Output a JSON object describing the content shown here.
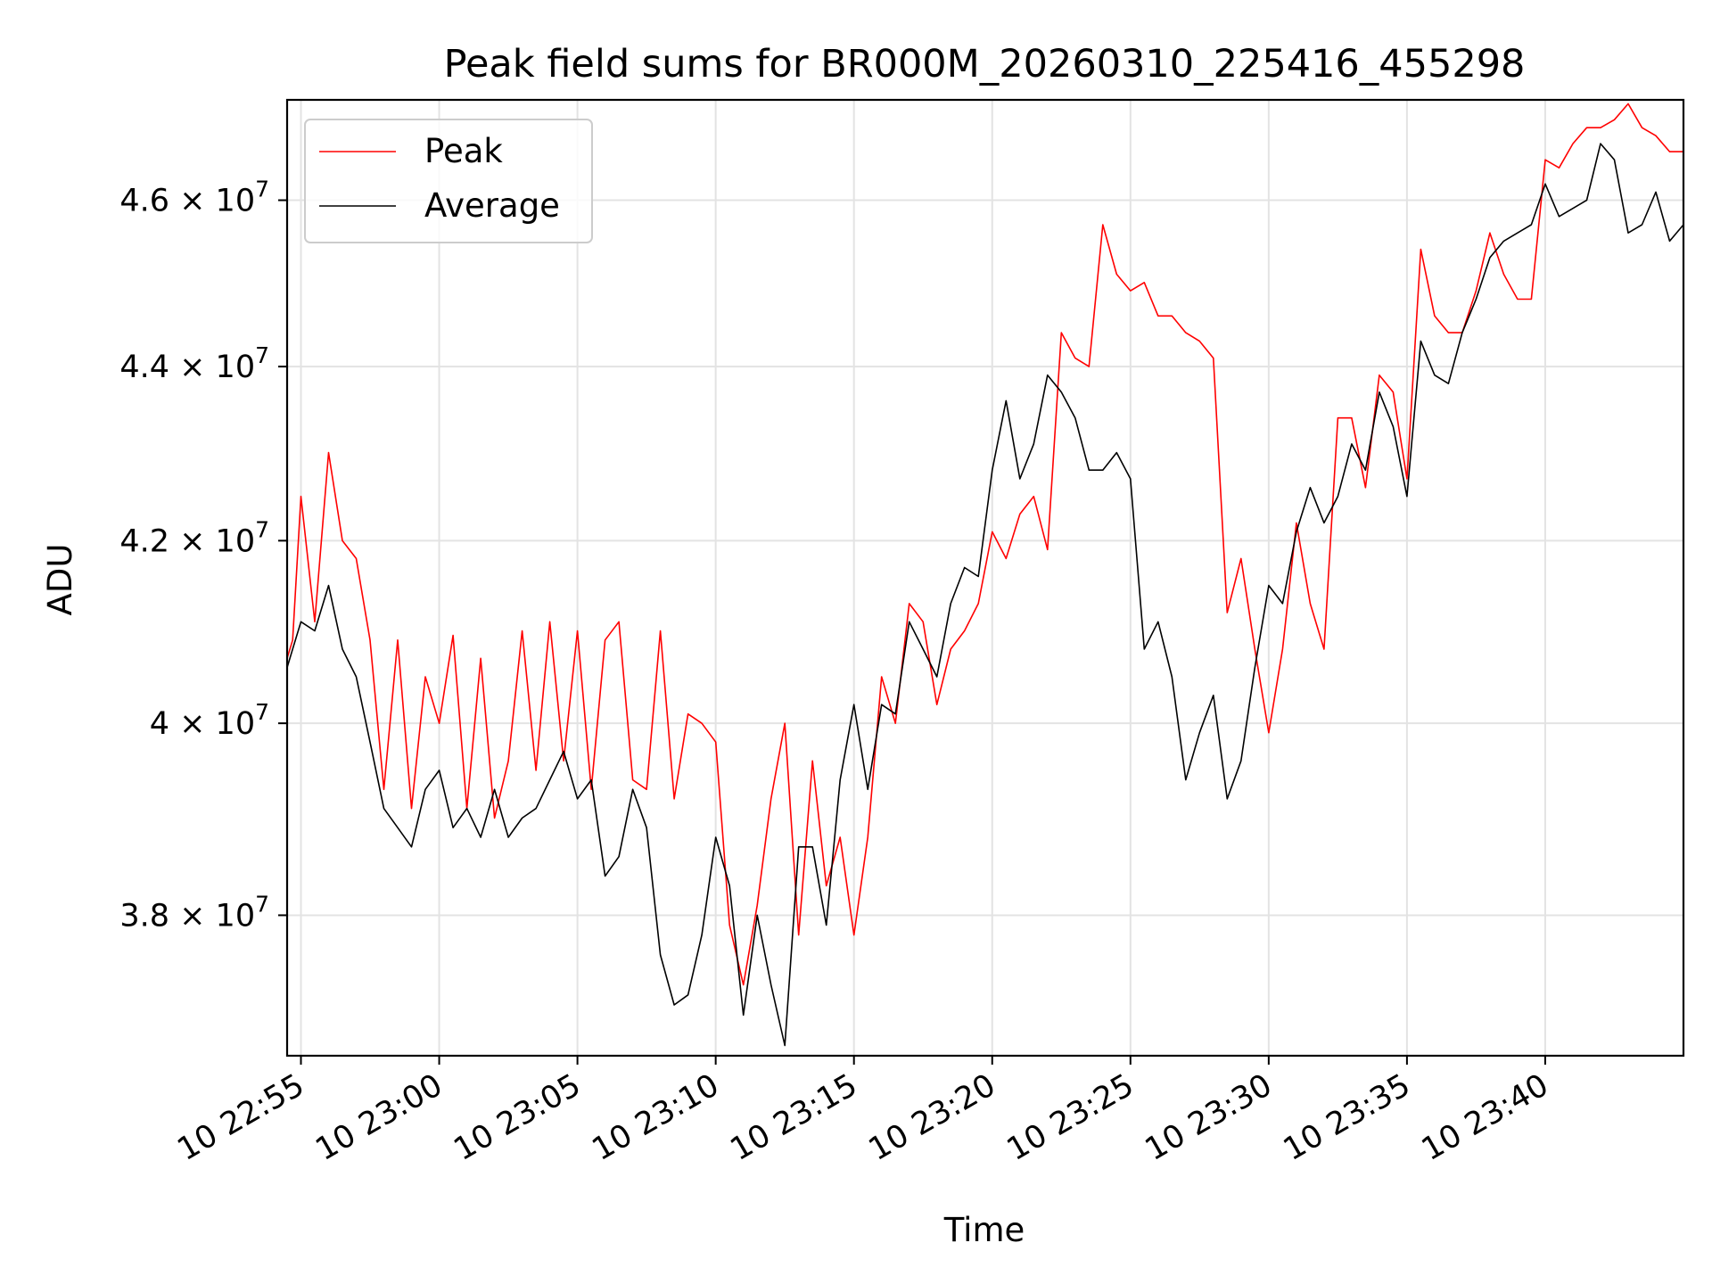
{
  "chart_data": {
    "type": "line",
    "title": "Peak field sums for BR000M_20260310_225416_455298",
    "xlabel": "Time",
    "ylabel": "ADU",
    "yscale": "log",
    "xlim_minutes": [
      -0.5,
      50.0
    ],
    "ylim": [
      36600000,
      47250000
    ],
    "grid": true,
    "legend_position": "top-left",
    "x_ticks": [
      {
        "minute": 0,
        "label": "10 22:55"
      },
      {
        "minute": 5,
        "label": "10 23:00"
      },
      {
        "minute": 10,
        "label": "10 23:05"
      },
      {
        "minute": 15,
        "label": "10 23:10"
      },
      {
        "minute": 20,
        "label": "10 23:15"
      },
      {
        "minute": 25,
        "label": "10 23:20"
      },
      {
        "minute": 30,
        "label": "10 23:25"
      },
      {
        "minute": 35,
        "label": "10 23:30"
      },
      {
        "minute": 40,
        "label": "10 23:35"
      },
      {
        "minute": 45,
        "label": "10 23:40"
      }
    ],
    "y_ticks": [
      {
        "value": 38000000,
        "mantissa": "3.8",
        "exp": "7"
      },
      {
        "value": 40000000,
        "mantissa": "4",
        "exp": "7"
      },
      {
        "value": 42000000,
        "mantissa": "4.2",
        "exp": "7"
      },
      {
        "value": 44000000,
        "mantissa": "4.4",
        "exp": "7"
      },
      {
        "value": 46000000,
        "mantissa": "4.6",
        "exp": "7"
      }
    ],
    "series": [
      {
        "name": "Peak",
        "color": "#ff0000",
        "minutes": [
          -0.5,
          -0.3,
          0,
          0.5,
          1,
          1.5,
          2,
          2.5,
          3,
          3.5,
          4,
          4.5,
          5,
          5.5,
          6,
          6.5,
          7,
          7.5,
          8,
          8.5,
          9,
          9.5,
          10,
          10.5,
          11,
          11.5,
          12,
          12.5,
          13,
          13.5,
          14,
          14.5,
          15,
          15.5,
          16,
          16.5,
          17,
          17.5,
          18,
          18.5,
          19,
          19.5,
          20,
          20.5,
          21,
          21.5,
          22,
          22.5,
          23,
          23.5,
          24,
          24.5,
          25,
          25.5,
          26,
          26.5,
          27,
          27.5,
          28,
          28.5,
          29,
          29.5,
          30,
          30.5,
          31,
          31.5,
          32,
          32.5,
          33,
          33.5,
          34,
          34.5,
          35,
          35.5,
          36,
          36.5,
          37,
          37.5,
          38,
          38.5,
          39,
          39.5,
          40,
          40.5,
          41,
          41.5,
          42,
          42.5,
          43,
          43.5,
          44,
          44.5,
          45,
          45.5,
          46,
          46.5,
          47,
          47.5,
          48,
          48.5,
          49,
          49.5,
          50
        ],
        "values": [
          40700000,
          40900000,
          42500000,
          41100000,
          43000000,
          42000000,
          41800000,
          40900000,
          39300000,
          40900000,
          39100000,
          40500000,
          40000000,
          40950000,
          39100000,
          40700000,
          39000000,
          39600000,
          41000000,
          39500000,
          41100000,
          39600000,
          41000000,
          39300000,
          40900000,
          41100000,
          39400000,
          39300000,
          41000000,
          39200000,
          40100000,
          40000000,
          39800000,
          37900000,
          37300000,
          38100000,
          39200000,
          40000000,
          37800000,
          39600000,
          38300000,
          38800000,
          37800000,
          38800000,
          40500000,
          40000000,
          41300000,
          41100000,
          40200000,
          40800000,
          41000000,
          41300000,
          42100000,
          41800000,
          42300000,
          42500000,
          41900000,
          44400000,
          44100000,
          44000000,
          45700000,
          45100000,
          44900000,
          45000000,
          44600000,
          44600000,
          44400000,
          44300000,
          44100000,
          41200000,
          41800000,
          40800000,
          39900000,
          40800000,
          42200000,
          41300000,
          40800000,
          43400000,
          43400000,
          42600000,
          43900000,
          43700000,
          42700000,
          45400000,
          44600000,
          44400000,
          44400000,
          44900000,
          45600000,
          45100000,
          44800000,
          44800000,
          46500000,
          46400000,
          46700000,
          46900000,
          46900000,
          47000000,
          47200000,
          46900000,
          46800000,
          46600000,
          46600000
        ]
      },
      {
        "name": "Average",
        "color": "#000000",
        "minutes": [
          -0.5,
          -0.3,
          0,
          0.5,
          1,
          1.5,
          2,
          2.5,
          3,
          3.5,
          4,
          4.5,
          5,
          5.5,
          6,
          6.5,
          7,
          7.5,
          8,
          8.5,
          9,
          9.5,
          10,
          10.5,
          11,
          11.5,
          12,
          12.5,
          13,
          13.5,
          14,
          14.5,
          15,
          15.5,
          16,
          16.5,
          17,
          17.5,
          18,
          18.5,
          19,
          19.5,
          20,
          20.5,
          21,
          21.5,
          22,
          22.5,
          23,
          23.5,
          24,
          24.5,
          25,
          25.5,
          26,
          26.5,
          27,
          27.5,
          28,
          28.5,
          29,
          29.5,
          30,
          30.5,
          31,
          31.5,
          32,
          32.5,
          33,
          33.5,
          34,
          34.5,
          35,
          35.5,
          36,
          36.5,
          37,
          37.5,
          38,
          38.5,
          39,
          39.5,
          40,
          40.5,
          41,
          41.5,
          42,
          42.5,
          43,
          43.5,
          44,
          44.5,
          45,
          45.5,
          46,
          46.5,
          47,
          47.5,
          48,
          48.5,
          49,
          49.5,
          50
        ],
        "values": [
          40600000,
          40800000,
          41100000,
          41000000,
          41500000,
          40800000,
          40500000,
          39800000,
          39100000,
          38900000,
          38700000,
          39300000,
          39500000,
          38900000,
          39100000,
          38800000,
          39300000,
          38800000,
          39000000,
          39100000,
          39400000,
          39700000,
          39200000,
          39400000,
          38400000,
          38600000,
          39300000,
          38900000,
          37600000,
          37100000,
          37200000,
          37800000,
          38800000,
          38300000,
          37000000,
          38000000,
          37300000,
          36700000,
          38700000,
          38700000,
          37900000,
          39400000,
          40200000,
          39300000,
          40200000,
          40100000,
          41100000,
          40800000,
          40500000,
          41300000,
          41700000,
          41600000,
          42800000,
          43600000,
          42700000,
          43100000,
          43900000,
          43700000,
          43400000,
          42800000,
          42800000,
          43000000,
          42700000,
          40800000,
          41100000,
          40500000,
          39400000,
          39900000,
          40300000,
          39200000,
          39600000,
          40600000,
          41500000,
          41300000,
          42100000,
          42600000,
          42200000,
          42500000,
          43100000,
          42800000,
          43700000,
          43300000,
          42500000,
          44300000,
          43900000,
          43800000,
          44400000,
          44800000,
          45300000,
          45500000,
          45600000,
          45700000,
          46200000,
          45800000,
          45900000,
          46000000,
          46700000,
          46500000,
          45600000,
          45700000,
          46100000,
          45500000,
          45700000
        ]
      }
    ]
  }
}
